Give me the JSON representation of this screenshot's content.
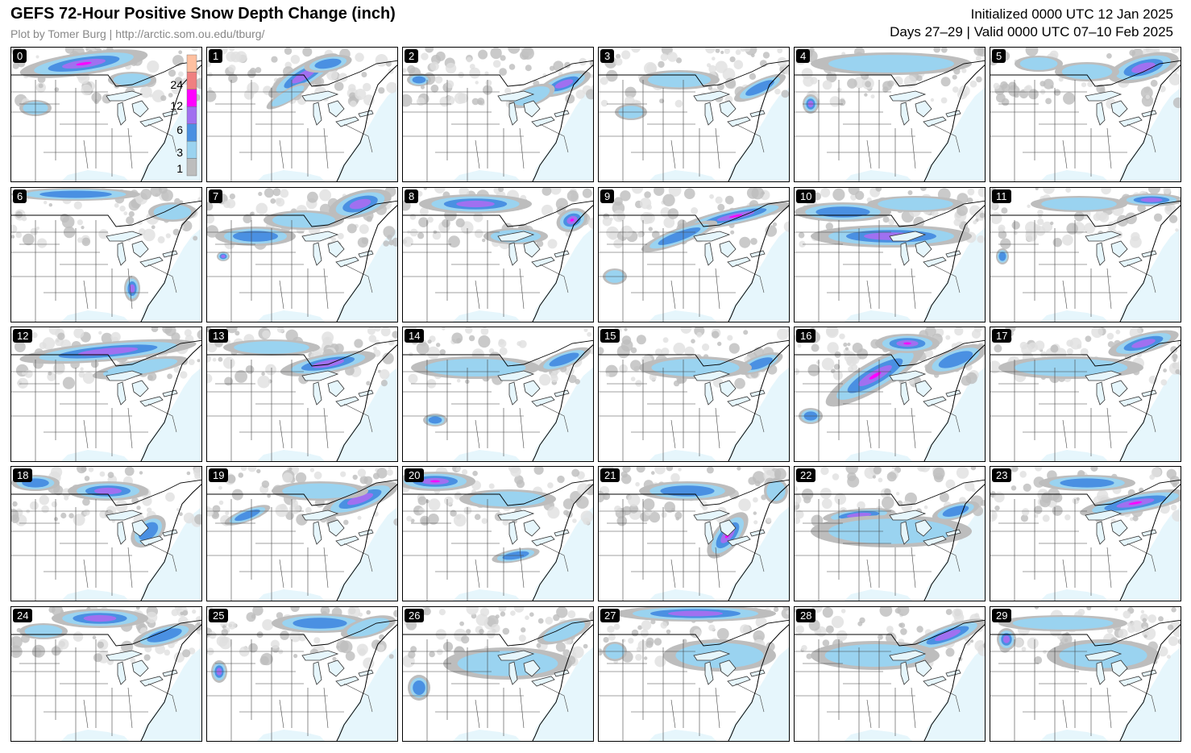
{
  "header": {
    "title": "GEFS 72-Hour Positive Snow Depth Change (inch)",
    "credit": "Plot by Tomer Burg | http://arctic.som.ou.edu/tburg/",
    "initialized": "Initialized 0000 UTC 12 Jan 2025",
    "valid": "Days 27–29 | Valid 0000 UTC 07–10 Feb 2025"
  },
  "colorbar": {
    "ticks": [
      "1",
      "3",
      "6",
      "12",
      "24"
    ],
    "colors": [
      "#bdbdbd",
      "#9ad3f0",
      "#4a90e2",
      "#a070f0",
      "#ff00ff",
      "#f08080",
      "#ffc0a0"
    ]
  },
  "members": [
    "0",
    "1",
    "2",
    "3",
    "4",
    "5",
    "6",
    "7",
    "8",
    "9",
    "10",
    "11",
    "12",
    "13",
    "14",
    "15",
    "16",
    "17",
    "18",
    "19",
    "20",
    "21",
    "22",
    "23",
    "24",
    "25",
    "26",
    "27",
    "28",
    "29"
  ],
  "colors": {
    "ocean": "#e6f6fc",
    "land": "#ffffff",
    "light_gray": "#e0e0e0",
    "gray": "#bdbdbd",
    "light_blue": "#9ad3f0",
    "blue": "#4a90e2",
    "purple": "#a070f0",
    "magenta": "#ff00ff",
    "pink": "#f08080"
  }
}
